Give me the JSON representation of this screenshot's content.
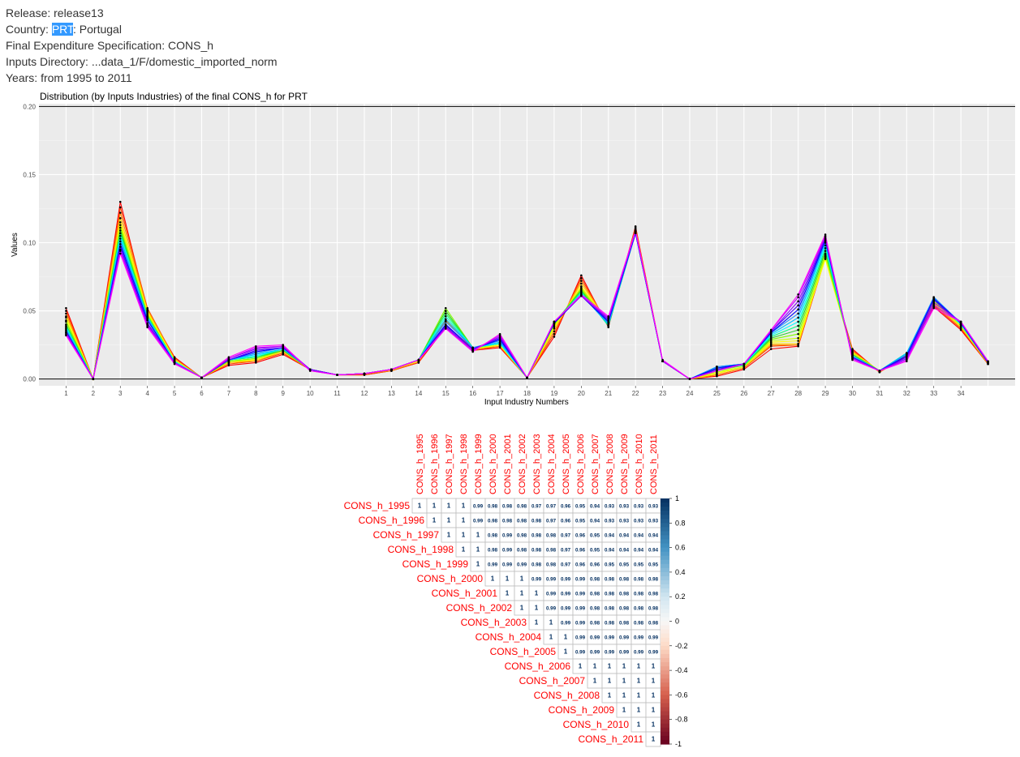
{
  "header": {
    "release": "Release: release13",
    "country_prefix": "Country: ",
    "country_code": "PRT",
    "country_suffix": ": Portugal",
    "final_spec": "Final Expenditure Specification: CONS_h",
    "inputs_dir": "Inputs Directory: ...data_1/F/domestic_imported_norm",
    "years": "Years: from 1995 to 2011"
  },
  "chart_data": [
    {
      "type": "line",
      "title": "Distribution (by Inputs Industries) of the final CONS_h for  PRT",
      "xlabel": "Input Industry Numbers",
      "ylabel": "Values",
      "ylim": [
        -0.005,
        0.202
      ],
      "yticks": [
        0.0,
        0.05,
        0.1,
        0.15,
        0.2
      ],
      "ytick_labels": [
        "0.00",
        "0.05",
        "0.10",
        "0.15",
        "0.20"
      ],
      "hlines": [
        0.0,
        0.2
      ],
      "x": [
        1,
        2,
        3,
        4,
        5,
        6,
        7,
        8,
        9,
        10,
        11,
        12,
        13,
        14,
        15,
        16,
        17,
        18,
        19,
        20,
        21,
        22,
        23,
        24,
        25,
        26,
        27,
        28,
        29,
        30,
        31,
        32,
        33,
        34,
        35
      ],
      "x_labels_shown": [
        1,
        2,
        3,
        4,
        5,
        6,
        7,
        8,
        9,
        10,
        11,
        12,
        13,
        14,
        15,
        16,
        17,
        18,
        19,
        20,
        21,
        22,
        23,
        24,
        25,
        26,
        27,
        28,
        29,
        30,
        31,
        32,
        33,
        34
      ],
      "grid": true,
      "legend": "none",
      "series": [
        {
          "values": [
            0.052,
            0.0,
            0.13,
            0.05,
            0.016,
            0.001,
            0.01,
            0.012,
            0.018,
            0.007,
            0.003,
            0.003,
            0.006,
            0.012,
            0.038,
            0.021,
            0.023,
            0.001,
            0.031,
            0.076,
            0.038,
            0.112,
            0.013,
            0.0,
            0.002,
            0.007,
            0.022,
            0.024,
            0.089,
            0.022,
            0.005,
            0.017,
            0.053,
            0.036,
            0.011
          ],
          "color": "#ff0000"
        },
        {
          "values": [
            0.05,
            0.0,
            0.126,
            0.052,
            0.015,
            0.001,
            0.011,
            0.013,
            0.019,
            0.007,
            0.003,
            0.003,
            0.006,
            0.012,
            0.04,
            0.021,
            0.024,
            0.001,
            0.033,
            0.074,
            0.039,
            0.111,
            0.013,
            0.0,
            0.003,
            0.008,
            0.024,
            0.025,
            0.091,
            0.021,
            0.005,
            0.017,
            0.054,
            0.037,
            0.011
          ],
          "color": "#ff4500"
        },
        {
          "values": [
            0.048,
            0.0,
            0.122,
            0.051,
            0.015,
            0.001,
            0.012,
            0.013,
            0.02,
            0.007,
            0.003,
            0.004,
            0.006,
            0.013,
            0.043,
            0.022,
            0.024,
            0.001,
            0.035,
            0.072,
            0.04,
            0.11,
            0.013,
            0.0,
            0.003,
            0.008,
            0.025,
            0.025,
            0.09,
            0.02,
            0.005,
            0.018,
            0.055,
            0.038,
            0.011
          ],
          "color": "#ff8c00"
        },
        {
          "values": [
            0.046,
            0.0,
            0.118,
            0.05,
            0.014,
            0.001,
            0.012,
            0.014,
            0.02,
            0.007,
            0.003,
            0.004,
            0.007,
            0.013,
            0.046,
            0.022,
            0.025,
            0.001,
            0.037,
            0.07,
            0.041,
            0.109,
            0.013,
            0.0,
            0.004,
            0.009,
            0.026,
            0.026,
            0.089,
            0.02,
            0.006,
            0.018,
            0.056,
            0.038,
            0.012
          ],
          "color": "#ffd700"
        },
        {
          "values": [
            0.045,
            0.0,
            0.115,
            0.049,
            0.014,
            0.001,
            0.013,
            0.014,
            0.021,
            0.007,
            0.003,
            0.004,
            0.007,
            0.013,
            0.048,
            0.022,
            0.025,
            0.001,
            0.038,
            0.068,
            0.041,
            0.108,
            0.013,
            0.0,
            0.004,
            0.009,
            0.027,
            0.028,
            0.088,
            0.019,
            0.006,
            0.019,
            0.057,
            0.039,
            0.012
          ],
          "color": "#ffff00"
        },
        {
          "values": [
            0.043,
            0.0,
            0.113,
            0.048,
            0.013,
            0.001,
            0.013,
            0.015,
            0.021,
            0.007,
            0.003,
            0.004,
            0.007,
            0.014,
            0.05,
            0.022,
            0.026,
            0.001,
            0.039,
            0.067,
            0.041,
            0.108,
            0.013,
            0.0,
            0.005,
            0.009,
            0.028,
            0.03,
            0.09,
            0.019,
            0.006,
            0.019,
            0.057,
            0.039,
            0.012
          ],
          "color": "#c8ff00"
        },
        {
          "values": [
            0.042,
            0.0,
            0.111,
            0.047,
            0.013,
            0.001,
            0.013,
            0.015,
            0.021,
            0.007,
            0.003,
            0.004,
            0.007,
            0.014,
            0.052,
            0.023,
            0.026,
            0.001,
            0.04,
            0.066,
            0.04,
            0.107,
            0.013,
            0.0,
            0.006,
            0.01,
            0.029,
            0.033,
            0.092,
            0.018,
            0.006,
            0.019,
            0.058,
            0.04,
            0.012
          ],
          "color": "#80ff00"
        },
        {
          "values": [
            0.04,
            0.0,
            0.109,
            0.046,
            0.013,
            0.001,
            0.014,
            0.016,
            0.021,
            0.007,
            0.003,
            0.004,
            0.007,
            0.014,
            0.05,
            0.023,
            0.026,
            0.001,
            0.041,
            0.065,
            0.039,
            0.107,
            0.013,
            0.0,
            0.007,
            0.01,
            0.03,
            0.036,
            0.094,
            0.018,
            0.006,
            0.019,
            0.058,
            0.04,
            0.012
          ],
          "color": "#32cd32"
        },
        {
          "values": [
            0.039,
            0.0,
            0.107,
            0.046,
            0.013,
            0.001,
            0.014,
            0.016,
            0.022,
            0.007,
            0.003,
            0.004,
            0.007,
            0.014,
            0.048,
            0.023,
            0.026,
            0.001,
            0.041,
            0.064,
            0.039,
            0.107,
            0.013,
            0.0,
            0.008,
            0.01,
            0.031,
            0.039,
            0.096,
            0.017,
            0.006,
            0.019,
            0.059,
            0.04,
            0.012
          ],
          "color": "#00ff7f"
        },
        {
          "values": [
            0.038,
            0.0,
            0.105,
            0.045,
            0.013,
            0.001,
            0.014,
            0.017,
            0.022,
            0.007,
            0.003,
            0.004,
            0.007,
            0.014,
            0.046,
            0.023,
            0.026,
            0.001,
            0.041,
            0.063,
            0.04,
            0.107,
            0.013,
            0.0,
            0.009,
            0.011,
            0.032,
            0.042,
            0.098,
            0.017,
            0.006,
            0.019,
            0.059,
            0.04,
            0.012
          ],
          "color": "#00ffff"
        },
        {
          "values": [
            0.037,
            0.0,
            0.103,
            0.045,
            0.012,
            0.001,
            0.014,
            0.018,
            0.022,
            0.007,
            0.003,
            0.004,
            0.007,
            0.014,
            0.044,
            0.023,
            0.027,
            0.001,
            0.041,
            0.062,
            0.04,
            0.107,
            0.013,
            0.0,
            0.009,
            0.011,
            0.033,
            0.045,
            0.1,
            0.017,
            0.006,
            0.019,
            0.06,
            0.041,
            0.012
          ],
          "color": "#00bfff"
        },
        {
          "values": [
            0.036,
            0.0,
            0.101,
            0.044,
            0.012,
            0.001,
            0.014,
            0.019,
            0.023,
            0.007,
            0.003,
            0.004,
            0.007,
            0.014,
            0.042,
            0.023,
            0.028,
            0.001,
            0.041,
            0.062,
            0.041,
            0.107,
            0.013,
            0.0,
            0.009,
            0.011,
            0.034,
            0.048,
            0.101,
            0.016,
            0.006,
            0.018,
            0.06,
            0.041,
            0.012
          ],
          "color": "#1e90ff"
        },
        {
          "values": [
            0.035,
            0.0,
            0.099,
            0.043,
            0.012,
            0.001,
            0.014,
            0.02,
            0.023,
            0.007,
            0.003,
            0.004,
            0.007,
            0.014,
            0.04,
            0.022,
            0.029,
            0.001,
            0.041,
            0.061,
            0.042,
            0.107,
            0.013,
            0.0,
            0.008,
            0.011,
            0.034,
            0.051,
            0.102,
            0.016,
            0.006,
            0.017,
            0.059,
            0.041,
            0.012
          ],
          "color": "#0000ff"
        },
        {
          "values": [
            0.034,
            0.0,
            0.097,
            0.041,
            0.012,
            0.001,
            0.014,
            0.021,
            0.023,
            0.007,
            0.003,
            0.004,
            0.007,
            0.014,
            0.039,
            0.022,
            0.03,
            0.001,
            0.042,
            0.061,
            0.043,
            0.108,
            0.013,
            0.0,
            0.007,
            0.011,
            0.035,
            0.054,
            0.103,
            0.016,
            0.006,
            0.016,
            0.058,
            0.041,
            0.012
          ],
          "color": "#4b00ff"
        },
        {
          "values": [
            0.034,
            0.0,
            0.095,
            0.04,
            0.012,
            0.001,
            0.015,
            0.022,
            0.024,
            0.007,
            0.003,
            0.004,
            0.007,
            0.014,
            0.038,
            0.021,
            0.031,
            0.001,
            0.042,
            0.061,
            0.044,
            0.108,
            0.013,
            0.0,
            0.006,
            0.011,
            0.035,
            0.057,
            0.104,
            0.015,
            0.006,
            0.015,
            0.056,
            0.042,
            0.013
          ],
          "color": "#8a00ff"
        },
        {
          "values": [
            0.033,
            0.0,
            0.094,
            0.039,
            0.012,
            0.001,
            0.015,
            0.023,
            0.024,
            0.006,
            0.003,
            0.004,
            0.007,
            0.014,
            0.037,
            0.021,
            0.032,
            0.001,
            0.042,
            0.061,
            0.045,
            0.108,
            0.013,
            0.0,
            0.006,
            0.011,
            0.036,
            0.06,
            0.105,
            0.015,
            0.006,
            0.014,
            0.054,
            0.042,
            0.013
          ],
          "color": "#c000ff"
        },
        {
          "values": [
            0.032,
            0.0,
            0.092,
            0.038,
            0.011,
            0.001,
            0.016,
            0.024,
            0.025,
            0.006,
            0.003,
            0.004,
            0.007,
            0.014,
            0.037,
            0.02,
            0.033,
            0.001,
            0.042,
            0.062,
            0.046,
            0.109,
            0.014,
            0.0,
            0.006,
            0.011,
            0.036,
            0.062,
            0.106,
            0.014,
            0.006,
            0.013,
            0.052,
            0.042,
            0.013
          ],
          "color": "#ff00ff"
        }
      ]
    },
    {
      "type": "heatmap",
      "labels": [
        "CONS_h_1995",
        "CONS_h_1996",
        "CONS_h_1997",
        "CONS_h_1998",
        "CONS_h_1999",
        "CONS_h_2000",
        "CONS_h_2001",
        "CONS_h_2002",
        "CONS_h_2003",
        "CONS_h_2004",
        "CONS_h_2005",
        "CONS_h_2006",
        "CONS_h_2007",
        "CONS_h_2008",
        "CONS_h_2009",
        "CONS_h_2010",
        "CONS_h_2011"
      ],
      "matrix_upper": [
        [
          "1",
          "1",
          "1",
          "1",
          "0.99",
          "0.98",
          "0.98",
          "0.98",
          "0.97",
          "0.97",
          "0.96",
          "0.95",
          "0.94",
          "0.93",
          "0.93",
          "0.93",
          "0.93"
        ],
        [
          "1",
          "1",
          "1",
          "0.99",
          "0.98",
          "0.98",
          "0.98",
          "0.98",
          "0.97",
          "0.96",
          "0.95",
          "0.94",
          "0.93",
          "0.93",
          "0.93",
          "0.93"
        ],
        [
          "1",
          "1",
          "1",
          "0.98",
          "0.99",
          "0.98",
          "0.98",
          "0.98",
          "0.97",
          "0.96",
          "0.95",
          "0.94",
          "0.94",
          "0.94",
          "0.94"
        ],
        [
          "1",
          "1",
          "0.98",
          "0.99",
          "0.98",
          "0.98",
          "0.98",
          "0.97",
          "0.96",
          "0.95",
          "0.94",
          "0.94",
          "0.94",
          "0.94"
        ],
        [
          "1",
          "0.99",
          "0.99",
          "0.99",
          "0.98",
          "0.98",
          "0.97",
          "0.96",
          "0.96",
          "0.95",
          "0.95",
          "0.95",
          "0.95"
        ],
        [
          "1",
          "1",
          "1",
          "0.99",
          "0.99",
          "0.99",
          "0.99",
          "0.98",
          "0.98",
          "0.98",
          "0.98",
          "0.98"
        ],
        [
          "1",
          "1",
          "1",
          "0.99",
          "0.99",
          "0.99",
          "0.98",
          "0.98",
          "0.98",
          "0.98",
          "0.98"
        ],
        [
          "1",
          "1",
          "0.99",
          "0.99",
          "0.99",
          "0.98",
          "0.98",
          "0.98",
          "0.98",
          "0.98"
        ],
        [
          "1",
          "1",
          "0.99",
          "0.99",
          "0.98",
          "0.98",
          "0.98",
          "0.98",
          "0.98"
        ],
        [
          "1",
          "1",
          "0.99",
          "0.99",
          "0.99",
          "0.99",
          "0.99",
          "0.99"
        ],
        [
          "1",
          "0.99",
          "0.99",
          "0.99",
          "0.99",
          "0.99",
          "0.99"
        ],
        [
          "1",
          "1",
          "1",
          "1",
          "1",
          "1"
        ],
        [
          "1",
          "1",
          "1",
          "1",
          "1"
        ],
        [
          "1",
          "1",
          "1",
          "1"
        ],
        [
          "1",
          "1",
          "1"
        ],
        [
          "1",
          "1"
        ],
        [
          "1"
        ]
      ],
      "colorbar": {
        "ticks": [
          1,
          0.8,
          0.6,
          0.4,
          0.2,
          0,
          -0.2,
          -0.4,
          -0.6,
          -0.8,
          -1
        ],
        "tick_labels": [
          "1",
          "0.8",
          "0.6",
          "0.4",
          "0.2",
          "0",
          "-0.2",
          "-0.4",
          "-0.6",
          "-0.8",
          "-1"
        ],
        "range": [
          -1,
          1
        ],
        "low_color": "#67001f",
        "mid_color": "#f7f7f7",
        "high_color": "#053061"
      },
      "label_color": "#ff0000"
    }
  ]
}
